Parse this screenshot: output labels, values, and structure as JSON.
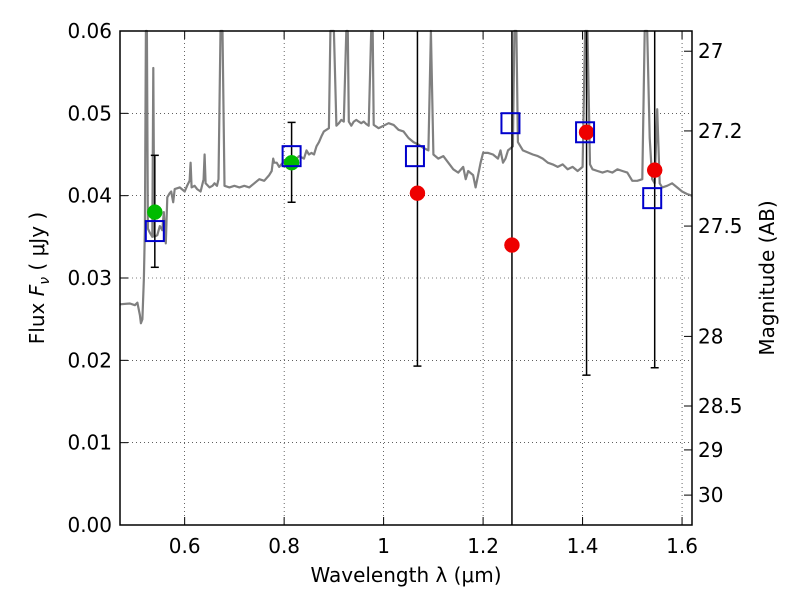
{
  "chart_data": {
    "type": "scatter",
    "xlabel": "Wavelength  λ (μm)",
    "ylabel_left_text": "Flux ",
    "ylabel_left_symbol": "F",
    "ylabel_left_sub": "ν",
    "ylabel_left_unit": " ( μJy )",
    "ylabel_right": "Magnitude (AB)",
    "xlim": [
      0.47,
      1.62
    ],
    "ylim": [
      0.0,
      0.06
    ],
    "x_ticks": [
      {
        "value": 0.6,
        "label": "0.6"
      },
      {
        "value": 0.8,
        "label": "0.8"
      },
      {
        "value": 1.0,
        "label": "1"
      },
      {
        "value": 1.2,
        "label": "1.2"
      },
      {
        "value": 1.4,
        "label": "1.4"
      },
      {
        "value": 1.6,
        "label": "1.6"
      }
    ],
    "y_ticks": [
      {
        "value": 0.0,
        "label": "0.00"
      },
      {
        "value": 0.01,
        "label": "0.01"
      },
      {
        "value": 0.02,
        "label": "0.02"
      },
      {
        "value": 0.03,
        "label": "0.03"
      },
      {
        "value": 0.04,
        "label": "0.04"
      },
      {
        "value": 0.05,
        "label": "0.05"
      },
      {
        "value": 0.06,
        "label": "0.06"
      }
    ],
    "right_ticks": [
      {
        "mag": 27,
        "label": "27"
      },
      {
        "mag": 27.2,
        "label": "27.2"
      },
      {
        "mag": 27.5,
        "label": "27.5"
      },
      {
        "mag": 28,
        "label": "28"
      },
      {
        "mag": 28.5,
        "label": "28.5"
      },
      {
        "mag": 29,
        "label": "29"
      },
      {
        "mag": 30,
        "label": "30"
      }
    ],
    "grid": true,
    "series": [
      {
        "name": "model-spectrum",
        "style": "line",
        "color": "#808080",
        "points": [
          [
            0.47,
            0.0268
          ],
          [
            0.49,
            0.0269
          ],
          [
            0.5,
            0.0267
          ],
          [
            0.505,
            0.027
          ],
          [
            0.51,
            0.0255
          ],
          [
            0.512,
            0.0245
          ],
          [
            0.515,
            0.025
          ],
          [
            0.518,
            0.03
          ],
          [
            0.52,
            0.036
          ],
          [
            0.522,
            0.06
          ],
          [
            0.524,
            0.06
          ],
          [
            0.526,
            0.036
          ],
          [
            0.53,
            0.0355
          ],
          [
            0.535,
            0.035
          ],
          [
            0.537,
            0.0555
          ],
          [
            0.539,
            0.035
          ],
          [
            0.545,
            0.0352
          ],
          [
            0.55,
            0.0363
          ],
          [
            0.555,
            0.0358
          ],
          [
            0.558,
            0.038
          ],
          [
            0.562,
            0.0342
          ],
          [
            0.565,
            0.0398
          ],
          [
            0.57,
            0.0403
          ],
          [
            0.573,
            0.0405
          ],
          [
            0.577,
            0.0392
          ],
          [
            0.58,
            0.0408
          ],
          [
            0.59,
            0.041
          ],
          [
            0.6,
            0.0405
          ],
          [
            0.605,
            0.0412
          ],
          [
            0.61,
            0.0418
          ],
          [
            0.612,
            0.044
          ],
          [
            0.614,
            0.041
          ],
          [
            0.62,
            0.0412
          ],
          [
            0.625,
            0.0408
          ],
          [
            0.632,
            0.0405
          ],
          [
            0.638,
            0.042
          ],
          [
            0.64,
            0.045
          ],
          [
            0.642,
            0.0415
          ],
          [
            0.65,
            0.041
          ],
          [
            0.656,
            0.0412
          ],
          [
            0.66,
            0.0415
          ],
          [
            0.665,
            0.0412
          ],
          [
            0.668,
            0.042
          ],
          [
            0.672,
            0.06
          ],
          [
            0.676,
            0.06
          ],
          [
            0.68,
            0.0412
          ],
          [
            0.69,
            0.041
          ],
          [
            0.7,
            0.0412
          ],
          [
            0.71,
            0.041
          ],
          [
            0.72,
            0.0412
          ],
          [
            0.73,
            0.041
          ],
          [
            0.74,
            0.0415
          ],
          [
            0.75,
            0.042
          ],
          [
            0.76,
            0.0418
          ],
          [
            0.77,
            0.0425
          ],
          [
            0.775,
            0.043
          ],
          [
            0.778,
            0.0445
          ],
          [
            0.78,
            0.044
          ],
          [
            0.785,
            0.044
          ],
          [
            0.79,
            0.0435
          ],
          [
            0.8,
            0.0442
          ],
          [
            0.81,
            0.0445
          ],
          [
            0.815,
            0.0448
          ],
          [
            0.82,
            0.0442
          ],
          [
            0.83,
            0.0448
          ],
          [
            0.84,
            0.0445
          ],
          [
            0.845,
            0.0455
          ],
          [
            0.85,
            0.045
          ],
          [
            0.855,
            0.0452
          ],
          [
            0.86,
            0.045
          ],
          [
            0.865,
            0.046
          ],
          [
            0.87,
            0.0465
          ],
          [
            0.875,
            0.0472
          ],
          [
            0.88,
            0.0478
          ],
          [
            0.885,
            0.048
          ],
          [
            0.89,
            0.0482
          ],
          [
            0.893,
            0.06
          ],
          [
            0.9,
            0.06
          ],
          [
            0.905,
            0.0485
          ],
          [
            0.91,
            0.0488
          ],
          [
            0.915,
            0.0492
          ],
          [
            0.92,
            0.049
          ],
          [
            0.925,
            0.06
          ],
          [
            0.928,
            0.06
          ],
          [
            0.93,
            0.049
          ],
          [
            0.935,
            0.0485
          ],
          [
            0.94,
            0.049
          ],
          [
            0.945,
            0.0492
          ],
          [
            0.95,
            0.049
          ],
          [
            0.955,
            0.0488
          ],
          [
            0.96,
            0.049
          ],
          [
            0.965,
            0.0487
          ],
          [
            0.97,
            0.0485
          ],
          [
            0.975,
            0.06
          ],
          [
            0.978,
            0.06
          ],
          [
            0.98,
            0.0486
          ],
          [
            0.99,
            0.0482
          ],
          [
            1.0,
            0.0485
          ],
          [
            1.01,
            0.0488
          ],
          [
            1.02,
            0.0486
          ],
          [
            1.03,
            0.048
          ],
          [
            1.04,
            0.0478
          ],
          [
            1.05,
            0.047
          ],
          [
            1.06,
            0.0465
          ],
          [
            1.07,
            0.0462
          ],
          [
            1.08,
            0.0458
          ],
          [
            1.09,
            0.0455
          ],
          [
            1.095,
            0.06
          ],
          [
            1.1,
            0.045
          ],
          [
            1.11,
            0.0445
          ],
          [
            1.12,
            0.0448
          ],
          [
            1.13,
            0.044
          ],
          [
            1.14,
            0.0432
          ],
          [
            1.15,
            0.0428
          ],
          [
            1.16,
            0.0435
          ],
          [
            1.165,
            0.042
          ],
          [
            1.17,
            0.043
          ],
          [
            1.18,
            0.0425
          ],
          [
            1.185,
            0.041
          ],
          [
            1.19,
            0.0425
          ],
          [
            1.195,
            0.044
          ],
          [
            1.2,
            0.0452
          ],
          [
            1.21,
            0.0452
          ],
          [
            1.22,
            0.045
          ],
          [
            1.23,
            0.0445
          ],
          [
            1.235,
            0.0455
          ],
          [
            1.24,
            0.044
          ],
          [
            1.245,
            0.0445
          ],
          [
            1.25,
            0.0455
          ],
          [
            1.26,
            0.046
          ],
          [
            1.263,
            0.06
          ],
          [
            1.267,
            0.06
          ],
          [
            1.27,
            0.0465
          ],
          [
            1.28,
            0.0455
          ],
          [
            1.3,
            0.045
          ],
          [
            1.31,
            0.0448
          ],
          [
            1.32,
            0.0445
          ],
          [
            1.33,
            0.044
          ],
          [
            1.34,
            0.0438
          ],
          [
            1.35,
            0.0435
          ],
          [
            1.36,
            0.0438
          ],
          [
            1.37,
            0.0432
          ],
          [
            1.38,
            0.0435
          ],
          [
            1.39,
            0.043
          ],
          [
            1.4,
            0.0435
          ],
          [
            1.405,
            0.06
          ],
          [
            1.41,
            0.06
          ],
          [
            1.415,
            0.0438
          ],
          [
            1.42,
            0.0432
          ],
          [
            1.43,
            0.043
          ],
          [
            1.44,
            0.0428
          ],
          [
            1.45,
            0.043
          ],
          [
            1.46,
            0.0428
          ],
          [
            1.47,
            0.0432
          ],
          [
            1.48,
            0.043
          ],
          [
            1.49,
            0.0428
          ],
          [
            1.5,
            0.0418
          ],
          [
            1.51,
            0.0418
          ],
          [
            1.52,
            0.042
          ],
          [
            1.525,
            0.06
          ],
          [
            1.53,
            0.06
          ],
          [
            1.535,
            0.047
          ],
          [
            1.54,
            0.042
          ],
          [
            1.545,
            0.0415
          ],
          [
            1.55,
            0.0505
          ],
          [
            1.555,
            0.0415
          ],
          [
            1.56,
            0.041
          ],
          [
            1.57,
            0.0412
          ],
          [
            1.58,
            0.0415
          ],
          [
            1.59,
            0.041
          ],
          [
            1.6,
            0.0405
          ],
          [
            1.61,
            0.0402
          ],
          [
            1.62,
            0.04
          ]
        ]
      },
      {
        "name": "observed-detections",
        "style": "circle",
        "color": "#00bb00",
        "points": [
          {
            "x": 0.54,
            "y": 0.038,
            "err_low": 0.0313,
            "err_high": 0.0449
          },
          {
            "x": 0.815,
            "y": 0.044,
            "err_low": 0.0392,
            "err_high": 0.0489
          }
        ]
      },
      {
        "name": "observed-limits",
        "style": "circle",
        "color": "#ee0000",
        "points": [
          {
            "x": 1.068,
            "y": 0.0403,
            "err_low": 0.0193,
            "err_high": 0.06
          },
          {
            "x": 1.258,
            "y": 0.034,
            "err_low": 0.0,
            "err_high": 0.06
          },
          {
            "x": 1.408,
            "y": 0.0477,
            "err_low": 0.0182,
            "err_high": 0.06
          },
          {
            "x": 1.545,
            "y": 0.0431,
            "err_low": 0.0191,
            "err_high": 0.06
          }
        ]
      },
      {
        "name": "model-photometry",
        "style": "open-square",
        "color": "#0000cc",
        "points": [
          {
            "x": 0.54,
            "y": 0.0357
          },
          {
            "x": 0.815,
            "y": 0.0448
          },
          {
            "x": 1.063,
            "y": 0.0448
          },
          {
            "x": 1.255,
            "y": 0.0488
          },
          {
            "x": 1.405,
            "y": 0.0477
          },
          {
            "x": 1.54,
            "y": 0.0397
          }
        ]
      }
    ]
  }
}
